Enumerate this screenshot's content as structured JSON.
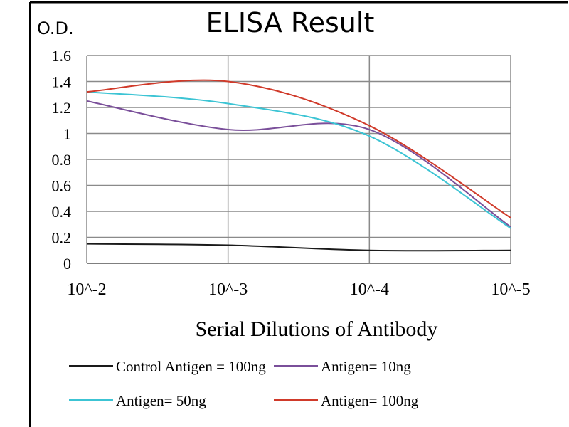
{
  "chart_data": {
    "type": "line",
    "title": "ELISA Result",
    "ylabel": "O.D.",
    "xlabel": "Serial Dilutions of Antibody",
    "categories": [
      "10^-2",
      "10^-3",
      "10^-4",
      "10^-5"
    ],
    "ylim": [
      0,
      1.6
    ],
    "yticks": [
      "0",
      "0.2",
      "0.4",
      "0.6",
      "0.8",
      "1",
      "1.2",
      "1.4",
      "1.6"
    ],
    "grid": true,
    "legend_placement": "bottom",
    "series": [
      {
        "name": "Control Antigen = 100ng",
        "color": "#1a1a1a",
        "values": [
          0.15,
          0.14,
          0.1,
          0.1
        ]
      },
      {
        "name": "Antigen= 10ng",
        "color": "#7a4f9a",
        "values": [
          1.25,
          1.03,
          1.03,
          0.28
        ]
      },
      {
        "name": "Antigen= 50ng",
        "color": "#3cc4d4",
        "values": [
          1.32,
          1.23,
          0.98,
          0.27
        ]
      },
      {
        "name": "Antigen= 100ng",
        "color": "#d03a2a",
        "values": [
          1.32,
          1.4,
          1.06,
          0.35
        ]
      }
    ]
  }
}
